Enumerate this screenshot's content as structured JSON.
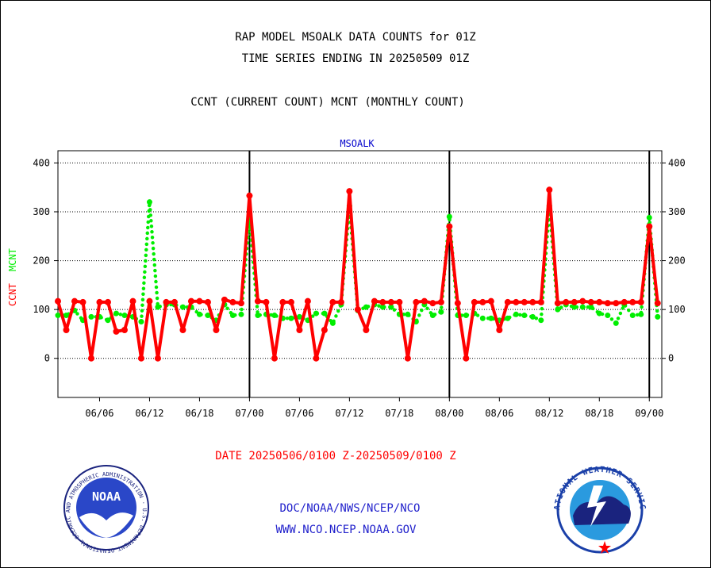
{
  "header": {
    "title_line1": "RAP MODEL MSOALK DATA COUNTS for 01Z",
    "title_line2": "TIME SERIES ENDING IN 20250509 01Z",
    "subtitle": "CCNT (CURRENT COUNT) MCNT (MONTHLY COUNT)"
  },
  "footer": {
    "date_range": "DATE 20250506/0100 Z-20250509/0100 Z",
    "link1": "DOC/NOAA/NWS/NCEP/NCO",
    "link2": "WWW.NCO.NCEP.NOAA.GOV",
    "noaa_logo_text": "NOAA",
    "noaa_ring_text": "NATIONAL OCEANIC AND ATMOSPHERIC ADMINISTRATION · U.S. DEPARTMENT OF COMMERCE ·",
    "nws_ring_text": "NATIONAL WEATHER SERVICE"
  },
  "colors": {
    "ccnt": "#ff0000",
    "mcnt": "#00ee00",
    "station": "#0000cc",
    "footer_red": "#ff0000",
    "footer_blue": "#2222cc"
  },
  "chart_data": {
    "type": "line",
    "title": "MSOALK",
    "ylabel_ccnt": "CCNT",
    "ylabel_mcnt": "MCNT",
    "ylim": [
      -80,
      425
    ],
    "yticks": [
      0,
      100,
      200,
      300,
      400
    ],
    "x_tick_labels": [
      "06/06",
      "06/12",
      "06/18",
      "07/00",
      "07/06",
      "07/12",
      "07/18",
      "08/00",
      "08/06",
      "08/12",
      "08/18",
      "09/00"
    ],
    "x_tick_hours": [
      5,
      11,
      17,
      23,
      29,
      35,
      41,
      47,
      53,
      59,
      65,
      71
    ],
    "day_boundary_hours": [
      23,
      47,
      71
    ],
    "grid": "horizontal",
    "series": [
      {
        "name": "CCNT",
        "style": "solid",
        "x": [
          0,
          1,
          2,
          3,
          4,
          5,
          6,
          7,
          8,
          9,
          10,
          11,
          12,
          13,
          14,
          15,
          16,
          17,
          18,
          19,
          20,
          21,
          22,
          23,
          24,
          25,
          26,
          27,
          28,
          29,
          30,
          31,
          32,
          33,
          34,
          35,
          36,
          37,
          38,
          39,
          40,
          41,
          42,
          43,
          44,
          45,
          46,
          47,
          48,
          49,
          50,
          51,
          52,
          53,
          54,
          55,
          56,
          57,
          58,
          59,
          60,
          61,
          62,
          63,
          64,
          65,
          66,
          67,
          68,
          69,
          70,
          71,
          72
        ],
        "values": [
          117,
          58,
          117,
          115,
          0,
          115,
          115,
          55,
          58,
          117,
          0,
          117,
          0,
          115,
          115,
          58,
          117,
          117,
          115,
          58,
          120,
          115,
          113,
          333,
          117,
          115,
          0,
          115,
          115,
          58,
          117,
          0,
          58,
          115,
          115,
          342,
          100,
          58,
          117,
          115,
          115,
          115,
          0,
          115,
          117,
          113,
          115,
          270,
          113,
          0,
          115,
          115,
          117,
          58,
          115,
          115,
          115,
          115,
          115,
          345,
          113,
          115,
          115,
          117,
          115,
          115,
          113,
          113,
          115,
          115,
          115,
          270,
          113
        ]
      },
      {
        "name": "MCNT",
        "style": "dotted",
        "x": [
          0,
          1,
          2,
          3,
          4,
          5,
          6,
          7,
          8,
          9,
          10,
          11,
          12,
          13,
          14,
          15,
          16,
          17,
          18,
          19,
          20,
          21,
          22,
          23,
          24,
          25,
          26,
          27,
          28,
          29,
          30,
          31,
          32,
          33,
          34,
          35,
          36,
          37,
          38,
          39,
          40,
          41,
          42,
          43,
          44,
          45,
          46,
          47,
          48,
          49,
          50,
          51,
          52,
          53,
          54,
          55,
          56,
          57,
          58,
          59,
          60,
          61,
          62,
          63,
          64,
          65,
          66,
          67,
          68,
          69,
          70,
          71,
          72
        ],
        "values": [
          88,
          88,
          98,
          78,
          85,
          85,
          78,
          92,
          88,
          85,
          75,
          320,
          105,
          110,
          110,
          105,
          105,
          90,
          88,
          78,
          110,
          88,
          90,
          290,
          88,
          90,
          88,
          82,
          82,
          85,
          78,
          92,
          92,
          72,
          110,
          312,
          98,
          105,
          110,
          105,
          105,
          90,
          90,
          75,
          110,
          88,
          95,
          290,
          88,
          88,
          92,
          82,
          82,
          78,
          82,
          90,
          88,
          85,
          78,
          312,
          100,
          110,
          105,
          105,
          105,
          92,
          88,
          72,
          110,
          88,
          90,
          288,
          85
        ]
      }
    ]
  }
}
